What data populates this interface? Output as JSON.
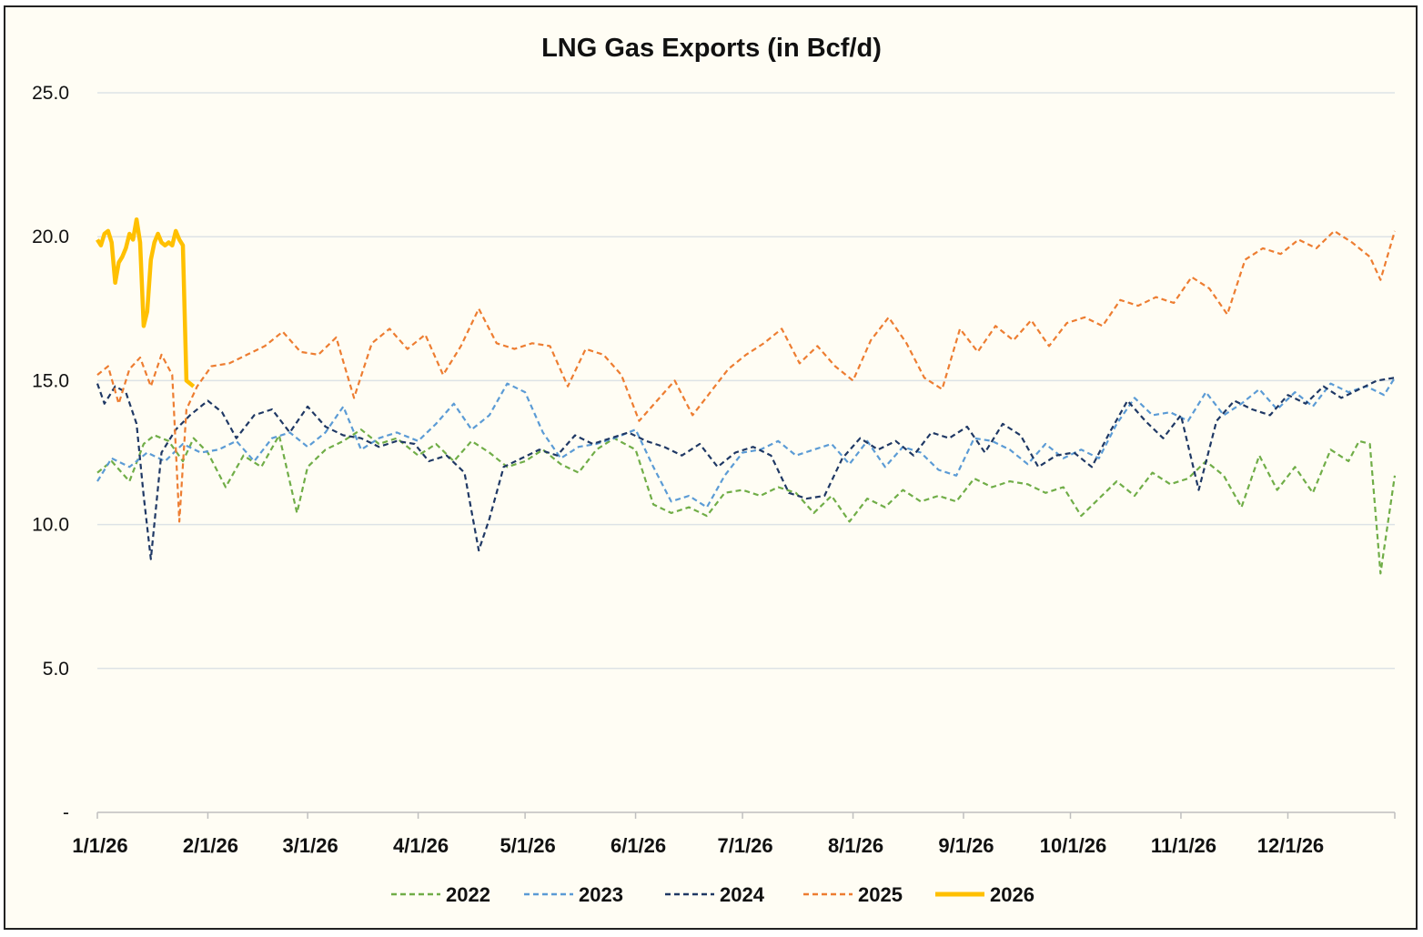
{
  "chart_data": {
    "type": "line",
    "title": "LNG Gas Exports (in Bcf/d)",
    "xlabel": "",
    "ylabel": "",
    "ylim": [
      0,
      25
    ],
    "y_ticks": [
      {
        "value": 0,
        "label": "-"
      },
      {
        "value": 5,
        "label": "5.0"
      },
      {
        "value": 10,
        "label": "10.0"
      },
      {
        "value": 15,
        "label": "15.0"
      },
      {
        "value": 20,
        "label": "20.0"
      },
      {
        "value": 25,
        "label": "25.0"
      }
    ],
    "x_ticks": [
      "1/1/26",
      "2/1/26",
      "3/1/26",
      "4/1/26",
      "5/1/26",
      "6/1/26",
      "7/1/26",
      "8/1/26",
      "9/1/26",
      "10/1/26",
      "11/1/26",
      "12/1/26"
    ],
    "x_range": [
      "1/1/26",
      "12/31/26"
    ],
    "grid": true,
    "legend_position": "bottom",
    "series": [
      {
        "name": "2022",
        "color": "#70ad47",
        "style": "dashed",
        "x": [
          "1/1/26",
          "1/5/26",
          "1/10/26",
          "1/14/26",
          "1/17/26",
          "1/21/26",
          "1/25/26",
          "1/28/26",
          "2/1/26",
          "2/6/26",
          "2/11/26",
          "2/16/26",
          "2/21/26",
          "2/26/26",
          "3/1/26",
          "3/6/26",
          "3/11/26",
          "3/16/26",
          "3/21/26",
          "3/26/26",
          "4/1/26",
          "4/6/26",
          "4/11/26",
          "4/16/26",
          "4/21/26",
          "4/26/26",
          "5/1/26",
          "5/6/26",
          "5/11/26",
          "5/16/26",
          "5/21/26",
          "5/26/26",
          "6/1/26",
          "6/6/26",
          "6/11/26",
          "6/16/26",
          "6/21/26",
          "6/26/26",
          "7/1/26",
          "7/6/26",
          "7/11/26",
          "7/16/26",
          "7/21/26",
          "7/26/26",
          "7/31/26",
          "8/5/26",
          "8/10/26",
          "8/15/26",
          "8/20/26",
          "8/25/26",
          "8/30/26",
          "9/4/26",
          "9/9/26",
          "9/14/26",
          "9/19/26",
          "9/24/26",
          "9/29/26",
          "10/4/26",
          "10/9/26",
          "10/14/26",
          "10/19/26",
          "10/24/26",
          "10/29/26",
          "11/3/26",
          "11/8/26",
          "11/13/26",
          "11/18/26",
          "11/23/26",
          "11/28/26",
          "12/3/26",
          "12/8/26",
          "12/13/26",
          "12/18/26",
          "12/21/26",
          "12/24/26",
          "12/27/26",
          "12/31/26"
        ],
        "y": [
          11.8,
          12.2,
          11.5,
          12.8,
          13.1,
          12.9,
          12.2,
          13.0,
          12.5,
          11.3,
          12.4,
          12.0,
          13.1,
          10.4,
          12.0,
          12.6,
          12.9,
          13.3,
          12.8,
          13.0,
          12.4,
          12.8,
          12.2,
          12.9,
          12.5,
          12.0,
          12.2,
          12.6,
          12.1,
          11.8,
          12.6,
          13.0,
          12.6,
          10.7,
          10.4,
          10.6,
          10.3,
          11.1,
          11.2,
          11.0,
          11.3,
          11.1,
          10.4,
          11.0,
          10.1,
          10.9,
          10.6,
          11.2,
          10.8,
          11.0,
          10.8,
          11.6,
          11.3,
          11.5,
          11.4,
          11.1,
          11.3,
          10.3,
          10.9,
          11.5,
          11.0,
          11.8,
          11.4,
          11.6,
          12.2,
          11.7,
          10.6,
          12.4,
          11.2,
          12.0,
          11.1,
          12.6,
          12.2,
          12.9,
          12.8,
          8.3,
          11.7
        ]
      },
      {
        "name": "2023",
        "color": "#5b9bd5",
        "style": "dashed",
        "x": [
          "1/1/26",
          "1/5/26",
          "1/10/26",
          "1/15/26",
          "1/20/26",
          "1/25/26",
          "1/30/26",
          "2/4/26",
          "2/9/26",
          "2/14/26",
          "2/19/26",
          "2/24/26",
          "3/1/26",
          "3/6/26",
          "3/11/26",
          "3/16/26",
          "3/21/26",
          "3/26/26",
          "4/1/26",
          "4/6/26",
          "4/11/26",
          "4/16/26",
          "4/21/26",
          "4/26/26",
          "5/1/26",
          "5/6/26",
          "5/11/26",
          "5/16/26",
          "5/21/26",
          "5/26/26",
          "6/1/26",
          "6/6/26",
          "6/11/26",
          "6/16/26",
          "6/21/26",
          "6/26/26",
          "7/1/26",
          "7/6/26",
          "7/11/26",
          "7/16/26",
          "7/21/26",
          "7/26/26",
          "7/31/26",
          "8/5/26",
          "8/10/26",
          "8/15/26",
          "8/20/26",
          "8/25/26",
          "8/30/26",
          "9/4/26",
          "9/9/26",
          "9/14/26",
          "9/19/26",
          "9/24/26",
          "9/29/26",
          "10/4/26",
          "10/9/26",
          "10/14/26",
          "10/19/26",
          "10/24/26",
          "10/29/26",
          "11/3/26",
          "11/8/26",
          "11/13/26",
          "11/18/26",
          "11/23/26",
          "11/28/26",
          "12/3/26",
          "12/8/26",
          "12/13/26",
          "12/18/26",
          "12/23/26",
          "12/28/26",
          "12/31/26"
        ],
        "y": [
          11.5,
          12.3,
          12.0,
          12.5,
          12.2,
          12.8,
          12.5,
          12.6,
          12.9,
          12.2,
          13.0,
          13.2,
          12.7,
          13.2,
          14.1,
          12.6,
          13.0,
          13.2,
          12.9,
          13.5,
          14.2,
          13.3,
          13.8,
          14.9,
          14.6,
          13.2,
          12.3,
          12.7,
          12.8,
          13.0,
          13.3,
          12.0,
          10.8,
          11.0,
          10.6,
          11.7,
          12.5,
          12.6,
          12.9,
          12.4,
          12.6,
          12.8,
          12.1,
          12.9,
          12.0,
          12.7,
          12.5,
          11.9,
          11.7,
          13.0,
          12.9,
          12.6,
          12.1,
          12.8,
          12.3,
          12.6,
          12.3,
          13.5,
          14.4,
          13.8,
          13.9,
          13.6,
          14.6,
          13.8,
          14.2,
          14.7,
          14.0,
          14.6,
          14.1,
          14.9,
          14.6,
          14.8,
          14.5,
          15.1
        ]
      },
      {
        "name": "2024",
        "color": "#1f3864",
        "style": "dashed",
        "x": [
          "1/1/26",
          "1/3/26",
          "1/6/26",
          "1/9/26",
          "1/12/26",
          "1/14/26",
          "1/16/26",
          "1/19/26",
          "1/23/26",
          "1/27/26",
          "2/1/26",
          "2/5/26",
          "2/9/26",
          "2/14/26",
          "2/19/26",
          "2/24/26",
          "3/1/26",
          "3/6/26",
          "3/11/26",
          "3/16/26",
          "3/21/26",
          "3/26/26",
          "3/31/26",
          "4/4/26",
          "4/9/26",
          "4/14/26",
          "4/18/26",
          "4/21/26",
          "4/25/26",
          "4/30/26",
          "5/5/26",
          "5/10/26",
          "5/15/26",
          "5/20/26",
          "5/25/26",
          "5/30/26",
          "6/4/26",
          "6/9/26",
          "6/14/26",
          "6/19/26",
          "6/24/26",
          "6/29/26",
          "7/4/26",
          "7/9/26",
          "7/14/26",
          "7/19/26",
          "7/24/26",
          "7/29/26",
          "8/3/26",
          "8/8/26",
          "8/13/26",
          "8/18/26",
          "8/23/26",
          "8/28/26",
          "9/2/26",
          "9/7/26",
          "9/12/26",
          "9/17/26",
          "9/22/26",
          "9/27/26",
          "10/2/26",
          "10/7/26",
          "10/12/26",
          "10/17/26",
          "10/22/26",
          "10/27/26",
          "11/1/26",
          "11/6/26",
          "11/11/26",
          "11/16/26",
          "11/21/26",
          "11/26/26",
          "12/1/26",
          "12/6/26",
          "12/11/26",
          "12/16/26",
          "12/21/26",
          "12/26/26",
          "12/31/26"
        ],
        "y": [
          14.9,
          14.2,
          14.8,
          14.6,
          13.5,
          11.0,
          8.8,
          12.5,
          13.3,
          13.8,
          14.3,
          13.9,
          13.0,
          13.8,
          14.0,
          13.2,
          14.1,
          13.4,
          13.1,
          13.0,
          12.7,
          12.9,
          12.8,
          12.2,
          12.4,
          11.8,
          9.1,
          10.2,
          12.0,
          12.3,
          12.6,
          12.4,
          13.1,
          12.8,
          13.0,
          13.2,
          12.9,
          12.7,
          12.4,
          12.8,
          12.0,
          12.5,
          12.7,
          12.4,
          11.1,
          10.9,
          11.0,
          12.3,
          13.0,
          12.6,
          12.9,
          12.4,
          13.2,
          13.0,
          13.4,
          12.5,
          13.5,
          13.1,
          12.0,
          12.4,
          12.5,
          12.0,
          13.2,
          14.3,
          13.6,
          13.0,
          13.8,
          11.2,
          13.6,
          14.3,
          14.0,
          13.8,
          14.5,
          14.2,
          14.8,
          14.4,
          14.7,
          15.0,
          15.1
        ]
      },
      {
        "name": "2025",
        "color": "#ed7d31",
        "style": "dashed",
        "x": [
          "1/1/26",
          "1/4/26",
          "1/7/26",
          "1/10/26",
          "1/13/26",
          "1/16/26",
          "1/19/26",
          "1/22/26",
          "1/24/26",
          "1/26/26",
          "1/29/26",
          "2/2/26",
          "2/7/26",
          "2/12/26",
          "2/17/26",
          "2/22/26",
          "2/27/26",
          "3/4/26",
          "3/9/26",
          "3/14/26",
          "3/19/26",
          "3/24/26",
          "3/29/26",
          "4/3/26",
          "4/8/26",
          "4/13/26",
          "4/18/26",
          "4/23/26",
          "4/28/26",
          "5/3/26",
          "5/8/26",
          "5/13/26",
          "5/18/26",
          "5/23/26",
          "5/28/26",
          "6/2/26",
          "6/7/26",
          "6/12/26",
          "6/17/26",
          "6/22/26",
          "6/27/26",
          "7/2/26",
          "7/7/26",
          "7/12/26",
          "7/17/26",
          "7/22/26",
          "7/27/26",
          "8/1/26",
          "8/6/26",
          "8/11/26",
          "8/16/26",
          "8/21/26",
          "8/26/26",
          "8/31/26",
          "9/5/26",
          "9/10/26",
          "9/15/26",
          "9/20/26",
          "9/25/26",
          "9/30/26",
          "10/5/26",
          "10/10/26",
          "10/15/26",
          "10/20/26",
          "10/25/26",
          "10/30/26",
          "11/4/26",
          "11/9/26",
          "11/14/26",
          "11/19/26",
          "11/24/26",
          "11/29/26",
          "12/4/26",
          "12/9/26",
          "12/14/26",
          "12/19/26",
          "12/24/26",
          "12/27/26",
          "12/31/26"
        ],
        "y": [
          15.2,
          15.5,
          14.2,
          15.4,
          15.8,
          14.8,
          15.9,
          15.2,
          10.1,
          14.0,
          14.8,
          15.5,
          15.6,
          15.9,
          16.2,
          16.7,
          16.0,
          15.9,
          16.5,
          14.4,
          16.3,
          16.8,
          16.1,
          16.6,
          15.2,
          16.2,
          17.5,
          16.3,
          16.1,
          16.3,
          16.2,
          14.8,
          16.1,
          15.9,
          15.2,
          13.6,
          14.3,
          15.0,
          13.8,
          14.6,
          15.4,
          15.9,
          16.3,
          16.8,
          15.6,
          16.2,
          15.5,
          15.0,
          16.4,
          17.2,
          16.3,
          15.1,
          14.7,
          16.8,
          16.0,
          16.9,
          16.4,
          17.1,
          16.2,
          17.0,
          17.2,
          16.9,
          17.8,
          17.6,
          17.9,
          17.7,
          18.6,
          18.2,
          17.3,
          19.2,
          19.6,
          19.4,
          19.9,
          19.6,
          20.2,
          19.8,
          19.3,
          18.5,
          20.2
        ]
      },
      {
        "name": "2026",
        "color": "#ffc000",
        "style": "solid",
        "x": [
          "1/1/26",
          "1/2/26",
          "1/3/26",
          "1/4/26",
          "1/5/26",
          "1/6/26",
          "1/7/26",
          "1/8/26",
          "1/9/26",
          "1/10/26",
          "1/11/26",
          "1/12/26",
          "1/13/26",
          "1/14/26",
          "1/15/26",
          "1/16/26",
          "1/17/26",
          "1/18/26",
          "1/19/26",
          "1/20/26",
          "1/21/26",
          "1/22/26",
          "1/23/26",
          "1/24/26",
          "1/25/26",
          "1/26/26",
          "1/27/26",
          "1/28/26"
        ],
        "y": [
          19.9,
          19.7,
          20.1,
          20.2,
          19.8,
          18.4,
          19.1,
          19.3,
          19.6,
          20.1,
          19.9,
          20.6,
          19.8,
          16.9,
          17.4,
          19.2,
          19.8,
          20.1,
          19.8,
          19.7,
          19.8,
          19.7,
          20.2,
          19.9,
          19.7,
          15.0,
          14.9,
          14.8
        ]
      }
    ]
  }
}
